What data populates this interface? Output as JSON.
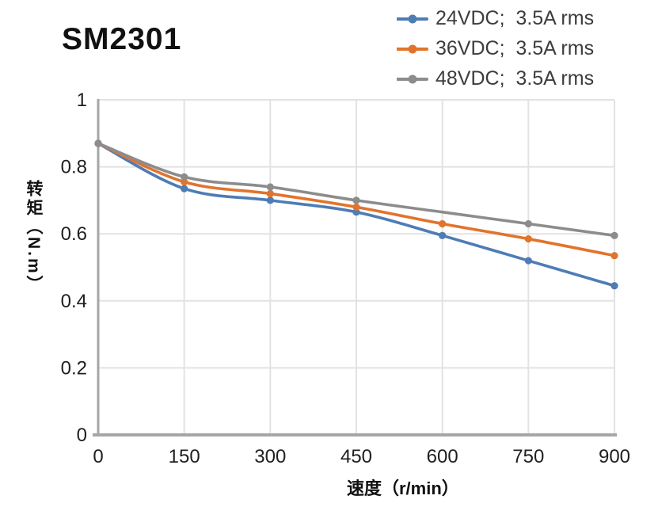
{
  "chart_data": {
    "type": "line",
    "title": "SM2301",
    "x": [
      0,
      150,
      300,
      450,
      600,
      750,
      900
    ],
    "series": [
      {
        "name": "24VDC;  3.5A rms",
        "color": "#4E7CB5",
        "marker": "circle",
        "values": [
          0.87,
          0.735,
          0.7,
          0.665,
          0.595,
          0.52,
          0.445
        ]
      },
      {
        "name": "36VDC;  3.5A rms",
        "color": "#E2732C",
        "marker": "circle",
        "values": [
          0.87,
          0.755,
          0.72,
          0.68,
          0.63,
          0.585,
          0.535
        ]
      },
      {
        "name": "48VDC;  3.5A rms",
        "color": "#8C8C8C",
        "marker": "circle",
        "values": [
          0.87,
          0.77,
          0.74,
          0.7,
          0.665,
          0.63,
          0.595
        ],
        "marker_skip_x": [
          600
        ]
      }
    ],
    "xlabel": "速度（r/min）",
    "ylabel": "转矩（N.m）",
    "xlim": [
      0,
      900
    ],
    "ylim": [
      0,
      1
    ],
    "x_ticks": [
      0,
      150,
      300,
      450,
      600,
      750,
      900
    ],
    "y_ticks": [
      0,
      0.2,
      0.4,
      0.6,
      0.8,
      1
    ],
    "grid": true,
    "smooth_lines": true,
    "legend_position": "top-right"
  },
  "styles": {
    "grid_color": "#E2E2E2",
    "axis_color": "#A6A6A6",
    "tick_text_color": "#1F1F1F",
    "legend_text_color": "#3C3C3C",
    "title_color": "#111111",
    "background": "#FFFFFF"
  }
}
